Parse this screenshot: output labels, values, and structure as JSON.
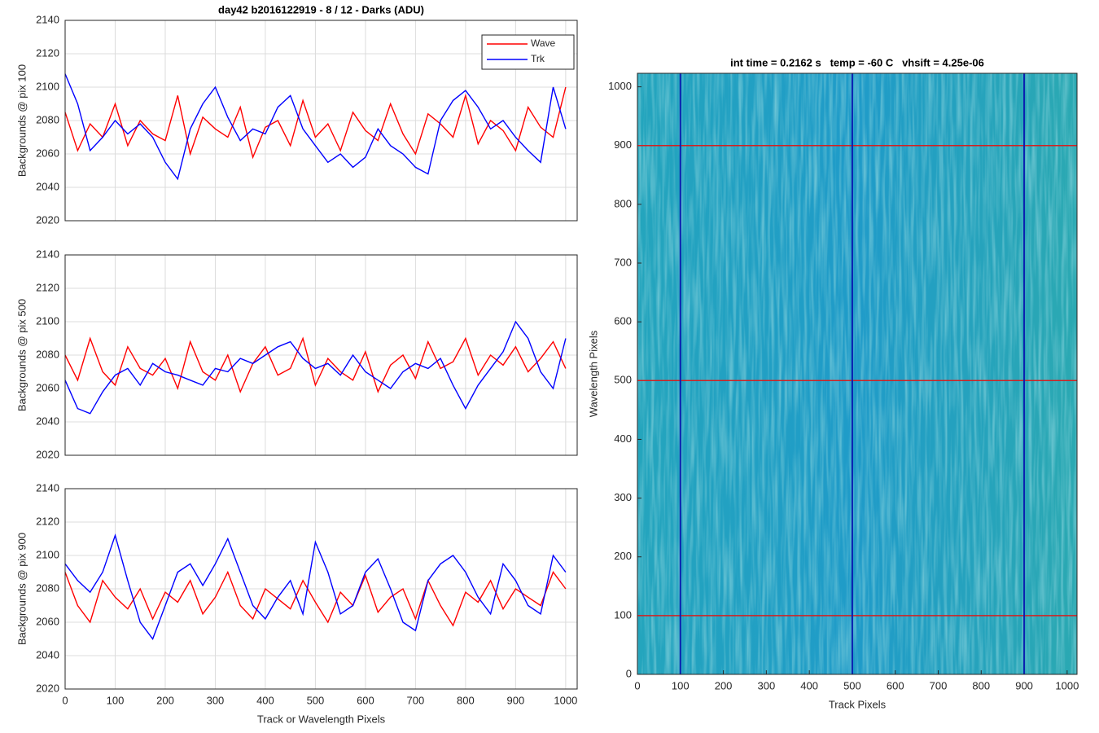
{
  "chart_data": [
    {
      "type": "line",
      "title": "day42 b2016122919 - 8 / 12 - Darks (ADU)",
      "ylabel": "Backgrounds @ pix 100",
      "x": [
        0,
        25,
        50,
        75,
        100,
        125,
        150,
        175,
        200,
        225,
        250,
        275,
        300,
        325,
        350,
        375,
        400,
        425,
        450,
        475,
        500,
        525,
        550,
        575,
        600,
        625,
        650,
        675,
        700,
        725,
        750,
        775,
        800,
        825,
        850,
        875,
        900,
        925,
        950,
        975,
        1000
      ],
      "series": [
        {
          "name": "Wave",
          "color": "#ff0000",
          "values": [
            2085,
            2062,
            2078,
            2070,
            2090,
            2065,
            2080,
            2072,
            2068,
            2095,
            2060,
            2082,
            2075,
            2070,
            2088,
            2058,
            2076,
            2080,
            2065,
            2092,
            2070,
            2078,
            2062,
            2085,
            2074,
            2068,
            2090,
            2072,
            2060,
            2084,
            2078,
            2070,
            2095,
            2066,
            2080,
            2074,
            2062,
            2088,
            2076,
            2070,
            2100
          ]
        },
        {
          "name": "Trk",
          "color": "#0000ff",
          "values": [
            2108,
            2090,
            2062,
            2070,
            2080,
            2072,
            2078,
            2070,
            2055,
            2045,
            2075,
            2090,
            2100,
            2082,
            2068,
            2075,
            2072,
            2088,
            2095,
            2075,
            2065,
            2055,
            2060,
            2052,
            2058,
            2075,
            2065,
            2060,
            2052,
            2048,
            2080,
            2092,
            2098,
            2088,
            2075,
            2080,
            2070,
            2062,
            2055,
            2100,
            2075
          ]
        }
      ],
      "xlim": [
        0,
        1023
      ],
      "ylim": [
        2020,
        2140
      ],
      "xticks": [
        0,
        100,
        200,
        300,
        400,
        500,
        600,
        700,
        800,
        900,
        1000
      ],
      "yticks": [
        2020,
        2040,
        2060,
        2080,
        2100,
        2120,
        2140
      ],
      "grid": true,
      "show_xticklabels": false,
      "legend": "northeast"
    },
    {
      "type": "line",
      "ylabel": "Backgrounds @ pix 500",
      "x": [
        0,
        25,
        50,
        75,
        100,
        125,
        150,
        175,
        200,
        225,
        250,
        275,
        300,
        325,
        350,
        375,
        400,
        425,
        450,
        475,
        500,
        525,
        550,
        575,
        600,
        625,
        650,
        675,
        700,
        725,
        750,
        775,
        800,
        825,
        850,
        875,
        900,
        925,
        950,
        975,
        1000
      ],
      "series": [
        {
          "color": "#ff0000",
          "values": [
            2080,
            2065,
            2090,
            2070,
            2062,
            2085,
            2072,
            2068,
            2078,
            2060,
            2088,
            2070,
            2065,
            2080,
            2058,
            2075,
            2085,
            2068,
            2072,
            2090,
            2062,
            2078,
            2070,
            2065,
            2082,
            2058,
            2074,
            2080,
            2066,
            2088,
            2072,
            2076,
            2090,
            2068,
            2080,
            2074,
            2085,
            2070,
            2078,
            2088,
            2072
          ]
        },
        {
          "color": "#0000ff",
          "values": [
            2065,
            2048,
            2045,
            2058,
            2068,
            2072,
            2062,
            2075,
            2070,
            2068,
            2065,
            2062,
            2072,
            2070,
            2078,
            2075,
            2080,
            2085,
            2088,
            2078,
            2072,
            2075,
            2068,
            2080,
            2070,
            2065,
            2060,
            2070,
            2075,
            2072,
            2078,
            2062,
            2048,
            2062,
            2072,
            2082,
            2100,
            2090,
            2070,
            2060,
            2090
          ]
        }
      ],
      "xlim": [
        0,
        1023
      ],
      "ylim": [
        2020,
        2140
      ],
      "xticks": [
        0,
        100,
        200,
        300,
        400,
        500,
        600,
        700,
        800,
        900,
        1000
      ],
      "yticks": [
        2020,
        2040,
        2060,
        2080,
        2100,
        2120,
        2140
      ],
      "grid": true,
      "show_xticklabels": false
    },
    {
      "type": "line",
      "ylabel": "Backgrounds @ pix 900",
      "xlabel": "Track or Wavelength Pixels",
      "x": [
        0,
        25,
        50,
        75,
        100,
        125,
        150,
        175,
        200,
        225,
        250,
        275,
        300,
        325,
        350,
        375,
        400,
        425,
        450,
        475,
        500,
        525,
        550,
        575,
        600,
        625,
        650,
        675,
        700,
        725,
        750,
        775,
        800,
        825,
        850,
        875,
        900,
        925,
        950,
        975,
        1000
      ],
      "series": [
        {
          "color": "#ff0000",
          "values": [
            2090,
            2070,
            2060,
            2085,
            2075,
            2068,
            2080,
            2062,
            2078,
            2072,
            2085,
            2065,
            2075,
            2090,
            2070,
            2062,
            2080,
            2074,
            2068,
            2085,
            2072,
            2060,
            2078,
            2070,
            2088,
            2066,
            2075,
            2080,
            2062,
            2085,
            2070,
            2058,
            2078,
            2072,
            2085,
            2068,
            2080,
            2075,
            2070,
            2090,
            2080
          ]
        },
        {
          "color": "#0000ff",
          "values": [
            2095,
            2085,
            2078,
            2090,
            2112,
            2085,
            2060,
            2050,
            2070,
            2090,
            2095,
            2082,
            2095,
            2110,
            2090,
            2070,
            2062,
            2075,
            2085,
            2065,
            2108,
            2090,
            2065,
            2070,
            2090,
            2098,
            2080,
            2060,
            2055,
            2085,
            2095,
            2100,
            2090,
            2075,
            2065,
            2095,
            2085,
            2070,
            2065,
            2100,
            2090
          ]
        }
      ],
      "xlim": [
        0,
        1023
      ],
      "ylim": [
        2020,
        2140
      ],
      "xticks": [
        0,
        100,
        200,
        300,
        400,
        500,
        600,
        700,
        800,
        900,
        1000
      ],
      "yticks": [
        2020,
        2040,
        2060,
        2080,
        2100,
        2120,
        2140
      ],
      "grid": true,
      "show_xticklabels": true
    },
    {
      "type": "image",
      "title": "int time = 0.2162 s   temp = -60 C   vhsift = 4.25e-06",
      "xlabel": "Track Pixels",
      "ylabel": "Wavelength Pixels",
      "xlim": [
        0,
        1023
      ],
      "ylim": [
        0,
        1023
      ],
      "xticks": [
        0,
        100,
        200,
        300,
        400,
        500,
        600,
        700,
        800,
        900,
        1000
      ],
      "yticks": [
        0,
        100,
        200,
        300,
        400,
        500,
        600,
        700,
        800,
        900,
        1000
      ],
      "hlines": {
        "color": "#d42020",
        "values": [
          100,
          500,
          900
        ]
      },
      "vlines": {
        "color": "#0a1fb0",
        "values": [
          100,
          500,
          900
        ]
      }
    }
  ]
}
